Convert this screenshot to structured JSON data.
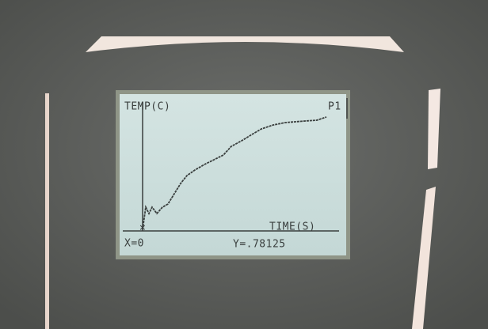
{
  "screen": {
    "y_label": "TEMP(C)",
    "plot_label": "P1",
    "x_label": "TIME(S)",
    "x_readout": "X=0",
    "y_readout": "Y=.78125"
  }
}
